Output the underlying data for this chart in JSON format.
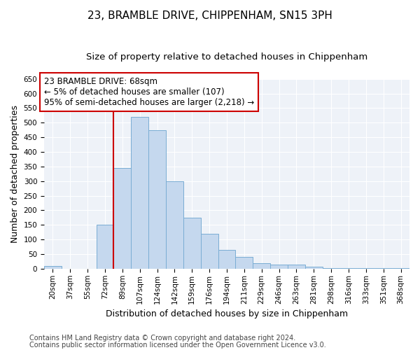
{
  "title": "23, BRAMBLE DRIVE, CHIPPENHAM, SN15 3PH",
  "subtitle": "Size of property relative to detached houses in Chippenham",
  "xlabel": "Distribution of detached houses by size in Chippenham",
  "ylabel": "Number of detached properties",
  "categories": [
    "20sqm",
    "37sqm",
    "55sqm",
    "72sqm",
    "89sqm",
    "107sqm",
    "124sqm",
    "142sqm",
    "159sqm",
    "176sqm",
    "194sqm",
    "211sqm",
    "229sqm",
    "246sqm",
    "263sqm",
    "281sqm",
    "298sqm",
    "316sqm",
    "333sqm",
    "351sqm",
    "368sqm"
  ],
  "values": [
    10,
    0,
    0,
    150,
    345,
    520,
    475,
    300,
    175,
    120,
    65,
    40,
    20,
    15,
    15,
    8,
    2,
    1,
    1,
    1,
    1
  ],
  "bar_color": "#c5d8ee",
  "bar_edge_color": "#7aadd4",
  "vline_x_index": 3,
  "vline_color": "#cc0000",
  "annotation_text": "23 BRAMBLE DRIVE: 68sqm\n← 5% of detached houses are smaller (107)\n95% of semi-detached houses are larger (2,218) →",
  "annotation_box_color": "#ffffff",
  "annotation_box_edge_color": "#cc0000",
  "ylim": [
    0,
    650
  ],
  "yticks": [
    0,
    50,
    100,
    150,
    200,
    250,
    300,
    350,
    400,
    450,
    500,
    550,
    600,
    650
  ],
  "footer_line1": "Contains HM Land Registry data © Crown copyright and database right 2024.",
  "footer_line2": "Contains public sector information licensed under the Open Government Licence v3.0.",
  "background_color": "#eef2f8",
  "fig_background_color": "#ffffff",
  "title_fontsize": 11,
  "subtitle_fontsize": 9.5,
  "axis_label_fontsize": 9,
  "tick_fontsize": 7.5,
  "annotation_fontsize": 8.5,
  "footer_fontsize": 7
}
